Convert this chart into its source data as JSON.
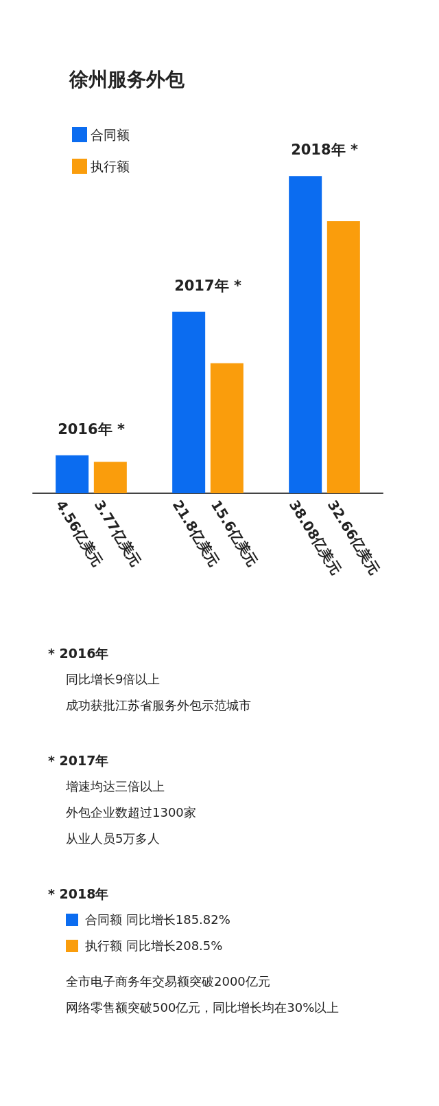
{
  "chart_data": {
    "type": "bar",
    "title": "徐州服务外包",
    "categories": [
      "2016年 *",
      "2017年 *",
      "2018年 *"
    ],
    "series": [
      {
        "name": "合同额",
        "color": "#0b6cf0",
        "values": [
          4.56,
          21.8,
          38.08
        ],
        "value_labels": [
          "4.56亿美元",
          "21.8亿美元",
          "38.08亿美元"
        ]
      },
      {
        "name": "执行额",
        "color": "#fa9d0c",
        "values": [
          3.77,
          15.6,
          32.66
        ],
        "value_labels": [
          "3.77亿美元",
          "15.6亿美元",
          "32.66亿美元"
        ]
      }
    ],
    "legend": "top left",
    "annotations": [
      "* 2016年",
      "同比增长9倍以上",
      "成功获批江苏省服务外包示范城市",
      "* 2017年",
      "增速均达三倍以上",
      "外包企业数超过1300家",
      "从业人员5万多人",
      "* 2018年",
      "合同额 同比增长185.82%",
      "执行额 同比增长208.5%",
      "全市电子商务年交易额突破2000亿元",
      "网络零售额突破500亿元，同比增长均在30%以上"
    ]
  }
}
